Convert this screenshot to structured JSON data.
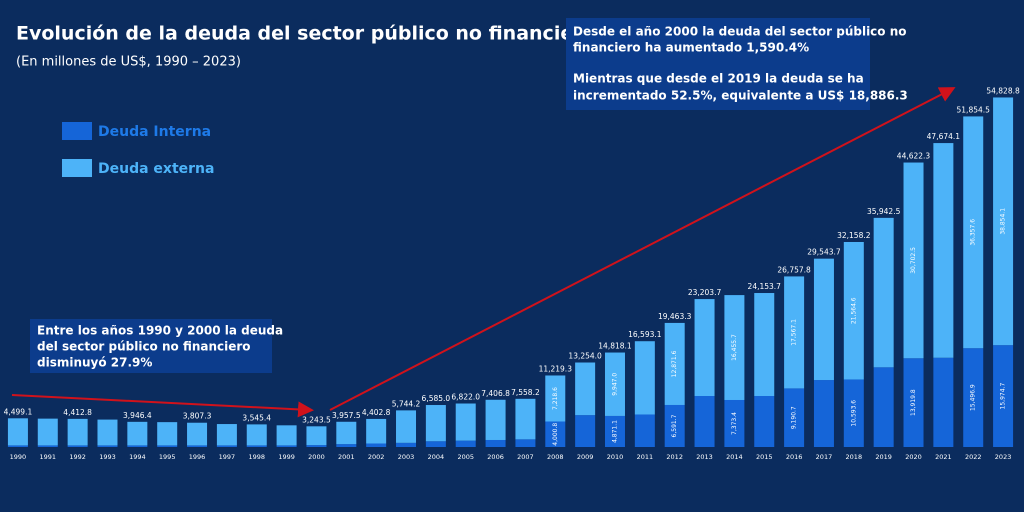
{
  "chart_data": {
    "type": "stacked_bar",
    "title": "Evolución de la deuda del sector público no financiero",
    "subtitle": "(En millones de US$, 1990 – 2023)",
    "categories": [
      "1990",
      "1991",
      "1992",
      "1993",
      "1994",
      "1995",
      "1996",
      "1997",
      "1998",
      "1999",
      "2000",
      "2001",
      "2002",
      "2003",
      "2004",
      "2005",
      "2006",
      "2007",
      "2008",
      "2009",
      "2010",
      "2011",
      "2012",
      "2013",
      "2014",
      "2015",
      "2016",
      "2017",
      "2018",
      "2019",
      "2020",
      "2021",
      "2022",
      "2023"
    ],
    "series": [
      {
        "name": "Deuda Interna",
        "color": "#1565d8",
        "values": [
          250,
          250,
          250,
          250,
          250,
          250,
          250,
          250,
          250,
          250,
          300,
          450,
          550,
          650,
          900,
          1000,
          1100,
          1200,
          4000.8,
          5000,
          4871.1,
          5100,
          6591.7,
          8000,
          7373.4,
          8000,
          9190.7,
          10500,
          10593.6,
          12500,
          13919.8,
          14000,
          15496.9,
          15974.7
        ],
        "value_labels": [
          null,
          null,
          null,
          null,
          null,
          null,
          null,
          null,
          null,
          null,
          null,
          null,
          null,
          null,
          null,
          null,
          null,
          null,
          "4,000.8",
          null,
          "4,871.1",
          null,
          "6,591.7",
          null,
          "7,373.4",
          null,
          "9,190.7",
          null,
          "10,593.6",
          null,
          "13,919.8",
          null,
          "15,496.9",
          "15,974.7"
        ]
      },
      {
        "name": "Deuda externa",
        "color": "#4db3f8",
        "values": [
          4249.1,
          4200,
          4162.8,
          4050,
          3696.4,
          3650,
          3557.3,
          3350,
          3295.4,
          3150,
          2943.5,
          3507.5,
          3852.8,
          5094.2,
          5685.0,
          5822.0,
          6306.8,
          6358.2,
          7218.6,
          8254.0,
          9947.0,
          11493.1,
          12871.6,
          15203.7,
          16455.7,
          16153.7,
          17567.1,
          19043.7,
          21564.6,
          23442.5,
          30702.5,
          33674.1,
          36357.6,
          38854.1
        ],
        "value_labels": [
          null,
          null,
          null,
          null,
          null,
          null,
          null,
          null,
          null,
          null,
          null,
          null,
          null,
          null,
          null,
          null,
          null,
          null,
          "7,218.6",
          null,
          "9,947.0",
          null,
          "12,871.6",
          null,
          "16,455.7",
          null,
          "17,567.1",
          null,
          "21,564.6",
          null,
          "30,702.5",
          null,
          "36,357.6",
          "38,854.1"
        ]
      }
    ],
    "totals": [
      4499.1,
      null,
      4412.8,
      null,
      3946.4,
      null,
      3807.3,
      null,
      3545.4,
      null,
      3243.5,
      3957.5,
      4402.8,
      5744.2,
      6585.0,
      6822.0,
      7406.8,
      7558.2,
      11219.3,
      13254.0,
      14818.1,
      16593.1,
      19463.3,
      23203.7,
      null,
      24153.7,
      26757.8,
      29543.7,
      32158.2,
      35942.5,
      44622.3,
      47674.1,
      51854.5,
      54828.8
    ],
    "total_labels": [
      "4,499.1",
      null,
      "4,412.8",
      null,
      "3,946.4",
      null,
      "3,807.3",
      null,
      "3,545.4",
      null,
      "3,243.5",
      "3,957.5",
      "4,402.8",
      "5,744.2",
      "6,585.0",
      "6,822.0",
      "7,406.8",
      "7,558.2",
      "11,219.3",
      "13,254.0",
      "14,818.1",
      "16,593.1",
      "19,463.3",
      "23,203.7",
      null,
      "24,153.7",
      "26,757.8",
      "29,543.7",
      "32,158.2",
      "35,942.5",
      "44,622.3",
      "47,674.1",
      "51,854.5",
      "54,828.8"
    ],
    "ylim": [
      0,
      56000
    ],
    "annotations": [
      {
        "lines": [
          "Desde el año 2000 la deuda del sector público no",
          "financiero ha aumentado 1,590.4%",
          "Mientras que desde el 2019 la deuda se ha",
          "incrementado 52.5%,  equivalente a US$ 18,886.3"
        ]
      },
      {
        "lines": [
          "Entre los años 1990 y 2000 la deuda",
          "del sector público no financiero",
          "disminuyó 27.9%"
        ]
      }
    ]
  }
}
